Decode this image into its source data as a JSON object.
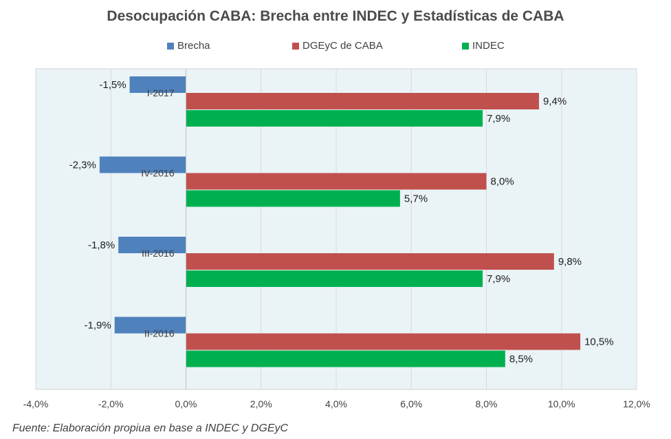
{
  "chart_data": {
    "type": "bar",
    "orientation": "horizontal",
    "title": "Desocupación CABA: Brecha entre INDEC y Estadísticas de CABA",
    "categories": [
      "I-2017",
      "IV-2016",
      "III-2016",
      "II-2016"
    ],
    "series": [
      {
        "name": "Brecha",
        "color": "#4f81bd",
        "values": [
          -1.5,
          -2.3,
          -1.8,
          -1.9
        ],
        "labels": [
          "-1,5%",
          "-2,3%",
          "-1,8%",
          "-1,9%"
        ]
      },
      {
        "name": "DGEyC de CABA",
        "color": "#c0504d",
        "values": [
          9.4,
          8.0,
          9.8,
          10.5
        ],
        "labels": [
          "9,4%",
          "8,0%",
          "9,8%",
          "10,5%"
        ]
      },
      {
        "name": "INDEC",
        "color": "#00b050",
        "values": [
          7.9,
          5.7,
          7.9,
          8.5
        ],
        "labels": [
          "7,9%",
          "5,7%",
          "7,9%",
          "8,5%"
        ]
      }
    ],
    "xlim": [
      -4.0,
      12.0
    ],
    "x_ticks": [
      -4,
      -2,
      0,
      2,
      4,
      6,
      8,
      10,
      12
    ],
    "x_tick_labels": [
      "-4,0%",
      "-2,0%",
      "0,0%",
      "2,0%",
      "4,0%",
      "6,0%",
      "8,0%",
      "10,0%",
      "12,0%"
    ],
    "legend_position": "top",
    "grid": true,
    "plot_background": "#eaf3f6"
  },
  "source_text": "Fuente: Elaboración propiua en base a INDEC y DGEyC"
}
